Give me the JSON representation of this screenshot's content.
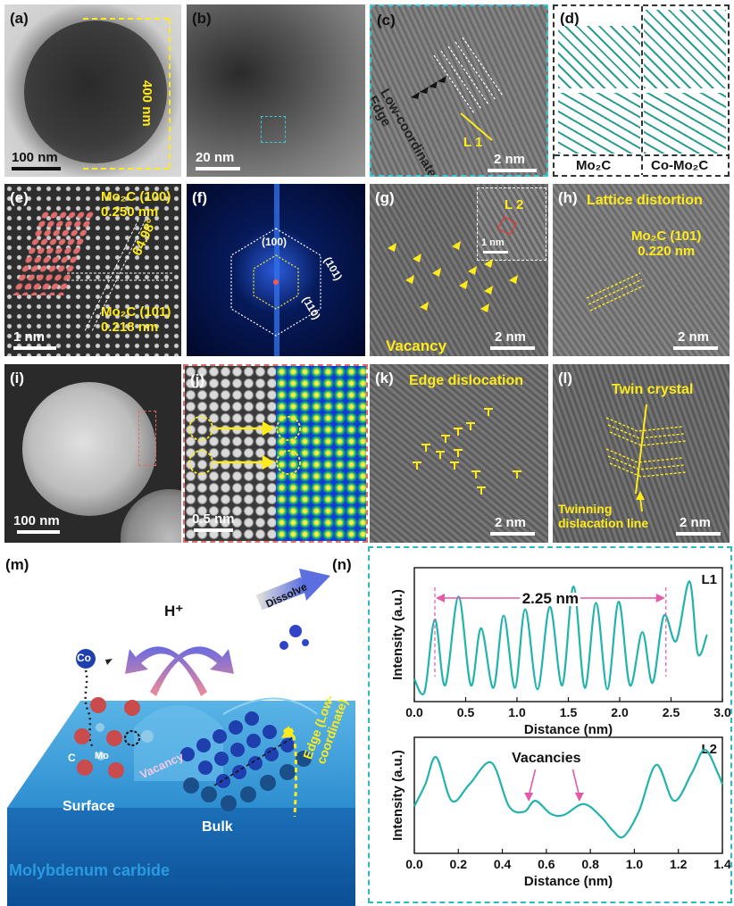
{
  "panels": {
    "a": {
      "label": "(a)",
      "scalebar": "100 nm",
      "dimension": "400 nm"
    },
    "b": {
      "label": "(b)",
      "scalebar": "20 nm"
    },
    "c": {
      "label": "(c)",
      "scalebar": "2 nm",
      "edge_text": "Low-coordinate Edge",
      "line_label": "L 1"
    },
    "d": {
      "label": "(d)",
      "left_caption": "Mo₂C",
      "right_caption": "Co-Mo₂C"
    },
    "e": {
      "label": "(e)",
      "scalebar": "1 nm",
      "plane1": "Mo₂C (100)",
      "d1": "0.250 nm",
      "angle": "64.98°",
      "plane2": "Mo₂C (101)",
      "d2": "0.218 nm"
    },
    "f": {
      "label": "(f)",
      "idx1": "(100)",
      "idx2": "(101)",
      "idx3": "(110)"
    },
    "g": {
      "label": "(g)",
      "scalebar": "2 nm",
      "inset_scalebar": "1 nm",
      "line_label": "L 2",
      "caption": "Vacancy"
    },
    "h": {
      "label": "(h)",
      "scalebar": "2 nm",
      "title": "Lattice distortion",
      "plane": "Mo₂C (101)",
      "d": "0.220 nm"
    },
    "i": {
      "label": "(i)",
      "scalebar": "100 nm"
    },
    "j": {
      "label": "(j)",
      "scalebar": "0.5 nm"
    },
    "k": {
      "label": "(k)",
      "scalebar": "2 nm",
      "title": "Edge dislocation"
    },
    "l": {
      "label": "(l)",
      "scalebar": "2 nm",
      "title": "Twin crystal",
      "caption": "Twinning dislacation line"
    },
    "m": {
      "label": "(m)",
      "proton": "H⁺",
      "co": "Co",
      "dissolve": "Dissolve",
      "c": "C",
      "mo": "Mo",
      "vacancy": "Vacancy",
      "surface": "Surface",
      "bulk": "Bulk",
      "edge": "Edge (Low-coordinate)",
      "material": "Molybdenum carbide"
    },
    "n": {
      "label": "(n)"
    }
  },
  "chart_data": [
    {
      "type": "line",
      "id": "L1",
      "series_label": "L1",
      "xlabel": "Distance (nm)",
      "ylabel": "Intensity (a.u.)",
      "xlim": [
        0.0,
        3.0
      ],
      "xticks": [
        "0.0",
        "0.5",
        "1.0",
        "1.5",
        "2.0",
        "2.5",
        "3.0"
      ],
      "annotation": "2.25 nm",
      "marker_x": [
        0.2,
        2.45
      ],
      "x": [
        0.0,
        0.1,
        0.2,
        0.3,
        0.43,
        0.55,
        0.65,
        0.77,
        0.87,
        0.98,
        1.08,
        1.2,
        1.32,
        1.44,
        1.55,
        1.66,
        1.77,
        1.88,
        1.99,
        2.1,
        2.22,
        2.32,
        2.43,
        2.55,
        2.68,
        2.76,
        2.85
      ],
      "y": [
        0.15,
        0.05,
        0.62,
        0.1,
        0.8,
        0.1,
        0.55,
        0.08,
        0.65,
        0.08,
        0.7,
        0.07,
        0.72,
        0.1,
        0.88,
        0.08,
        0.75,
        0.07,
        0.76,
        0.1,
        0.52,
        0.12,
        0.65,
        0.45,
        0.92,
        0.35,
        0.5
      ]
    },
    {
      "type": "line",
      "id": "L2",
      "series_label": "L2",
      "xlabel": "Distance (nm)",
      "ylabel": "Intensity (a.u.)",
      "xlim": [
        0.0,
        1.4
      ],
      "xticks": [
        "0.0",
        "0.2",
        "0.4",
        "0.6",
        "0.8",
        "1.0",
        "1.2",
        "1.4"
      ],
      "annotation": "Vacancies",
      "x": [
        0.0,
        0.05,
        0.1,
        0.17,
        0.25,
        0.35,
        0.43,
        0.5,
        0.55,
        0.62,
        0.68,
        0.77,
        0.85,
        0.9,
        0.95,
        1.02,
        1.1,
        1.18,
        1.26,
        1.32,
        1.38,
        1.4
      ],
      "y": [
        0.4,
        0.6,
        0.85,
        0.45,
        0.6,
        0.8,
        0.4,
        0.35,
        0.45,
        0.33,
        0.32,
        0.42,
        0.3,
        0.18,
        0.12,
        0.35,
        0.78,
        0.45,
        0.7,
        0.92,
        0.7,
        0.6
      ]
    }
  ],
  "colors": {
    "yellow": "#ffeb1a",
    "cyan": "#2fb8c8",
    "teal_line": "#22b3ad",
    "magenta": "#e25aa8",
    "blue_sub": "#1a6fc4"
  }
}
